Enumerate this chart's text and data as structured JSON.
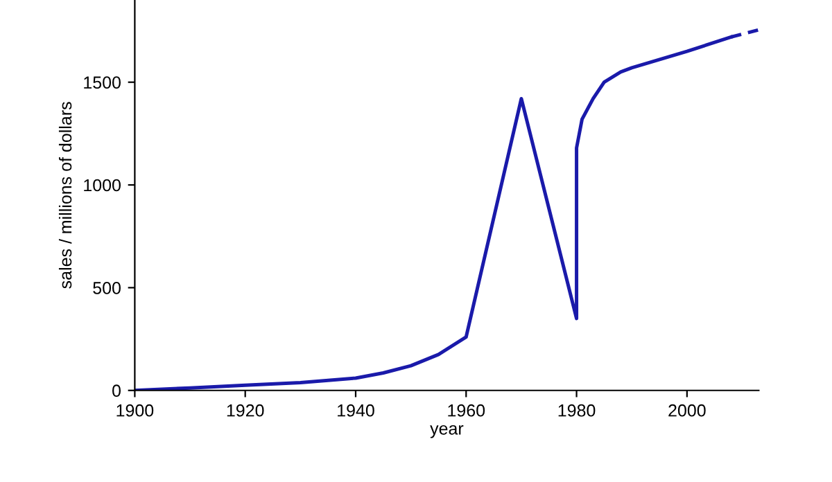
{
  "chart_data": {
    "type": "line",
    "xlabel": "year",
    "ylabel": "sales / millions of dollars",
    "xlim": [
      1900,
      2013
    ],
    "ylim": [
      0,
      1900
    ],
    "xticks": [
      1900,
      1920,
      1940,
      1960,
      1980,
      2000
    ],
    "yticks": [
      0,
      500,
      1000,
      1500
    ],
    "grid": false,
    "legend": false,
    "marker": "none",
    "series": [
      {
        "color": "#1a1aaa",
        "line_style": "solid",
        "x": [
          1900,
          1910,
          1920,
          1930,
          1940,
          1945,
          1950,
          1955,
          1960,
          1970,
          1980,
          1980,
          1981,
          1983,
          1985,
          1988,
          1990,
          2000,
          2008
        ],
        "values": [
          0,
          12,
          25,
          38,
          60,
          85,
          120,
          175,
          260,
          1420,
          350,
          1180,
          1320,
          1420,
          1500,
          1550,
          1570,
          1650,
          1720
        ]
      },
      {
        "color": "#1a1aaa",
        "line_style": "dashed",
        "x": [
          2008,
          2013
        ],
        "values": [
          1720,
          1755
        ]
      }
    ]
  }
}
